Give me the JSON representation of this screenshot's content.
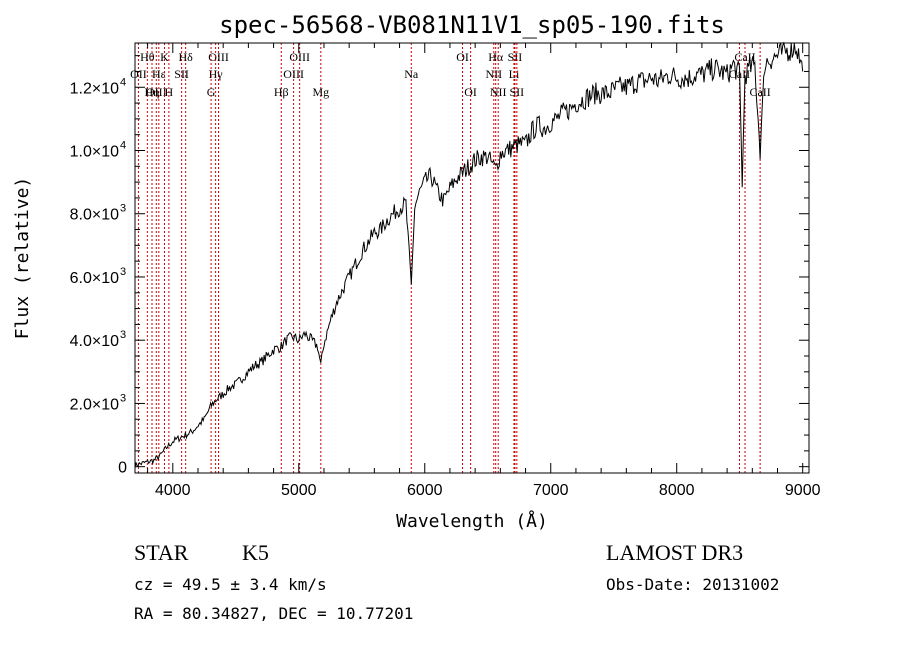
{
  "chart_data": {
    "type": "line",
    "title": "spec-56568-VB081N11V1_sp05-190.fits",
    "xlabel": "Wavelength (Å)",
    "ylabel": "Flux (relative)",
    "xlim": [
      3700,
      9050
    ],
    "ylim": [
      -200,
      13400
    ],
    "x_ticks": [
      4000,
      5000,
      6000,
      7000,
      8000,
      9000
    ],
    "y_ticks": [
      {
        "value": 0,
        "mantissa": "0",
        "exponent": ""
      },
      {
        "value": 2000,
        "mantissa": "2.0×10",
        "exponent": "3"
      },
      {
        "value": 4000,
        "mantissa": "4.0×10",
        "exponent": "3"
      },
      {
        "value": 6000,
        "mantissa": "6.0×10",
        "exponent": "3"
      },
      {
        "value": 8000,
        "mantissa": "8.0×10",
        "exponent": "3"
      },
      {
        "value": 10000,
        "mantissa": "1.0×10",
        "exponent": "4"
      },
      {
        "value": 12000,
        "mantissa": "1.2×10",
        "exponent": "4"
      }
    ],
    "spectrum": {
      "name": "flux",
      "x": [
        3700,
        3750,
        3800,
        3850,
        3900,
        3950,
        4000,
        4050,
        4100,
        4150,
        4200,
        4250,
        4300,
        4340,
        4400,
        4450,
        4500,
        4550,
        4600,
        4650,
        4700,
        4750,
        4800,
        4861,
        4900,
        4950,
        5000,
        5050,
        5100,
        5150,
        5175,
        5200,
        5250,
        5300,
        5350,
        5400,
        5450,
        5500,
        5550,
        5600,
        5650,
        5700,
        5750,
        5800,
        5850,
        5893,
        5920,
        5950,
        6000,
        6050,
        6100,
        6150,
        6200,
        6250,
        6300,
        6350,
        6400,
        6450,
        6500,
        6563,
        6600,
        6650,
        6700,
        6750,
        6800,
        6850,
        6900,
        6950,
        7000,
        7050,
        7100,
        7150,
        7200,
        7250,
        7300,
        7350,
        7400,
        7450,
        7500,
        7550,
        7600,
        7650,
        7700,
        7750,
        7800,
        7850,
        7900,
        7950,
        8000,
        8050,
        8100,
        8150,
        8200,
        8250,
        8300,
        8350,
        8400,
        8450,
        8498,
        8520,
        8542,
        8580,
        8620,
        8662,
        8700,
        8750,
        8800,
        8850,
        8900,
        8950,
        9000
      ],
      "flux": [
        50,
        100,
        150,
        200,
        350,
        600,
        800,
        900,
        1000,
        1100,
        1300,
        1500,
        1900,
        2100,
        2300,
        2500,
        2600,
        2800,
        3000,
        3200,
        3300,
        3500,
        3700,
        3800,
        4000,
        4100,
        4000,
        4200,
        4000,
        3800,
        3200,
        3900,
        4600,
        5200,
        5600,
        6000,
        6400,
        6800,
        7100,
        7400,
        7500,
        7800,
        8000,
        8200,
        8300,
        5700,
        8200,
        8600,
        9000,
        9200,
        8700,
        8400,
        8800,
        9100,
        9300,
        9500,
        9700,
        9800,
        9800,
        9400,
        9900,
        10000,
        10100,
        10200,
        10200,
        10600,
        10800,
        10700,
        10900,
        11000,
        11200,
        11300,
        11500,
        11600,
        11700,
        11800,
        11800,
        11800,
        11900,
        12000,
        12000,
        12100,
        12200,
        12200,
        12300,
        12200,
        12300,
        12400,
        12300,
        12300,
        12300,
        12400,
        12400,
        12500,
        12600,
        12500,
        12400,
        12700,
        12400,
        9000,
        12400,
        12600,
        12700,
        10000,
        12800,
        12900,
        13000,
        13100,
        13200,
        13300,
        12500
      ]
    },
    "lines": [
      {
        "label": "Hθ",
        "wave": 3798,
        "row": 0
      },
      {
        "label": "OII",
        "wave": 3727,
        "row": 1
      },
      {
        "label": "OIII",
        "wave": 3869,
        "row": 2
      },
      {
        "label": "Hε",
        "wave": 3889,
        "row": 1
      },
      {
        "label": "K",
        "wave": 3934,
        "row": 0
      },
      {
        "label": "Hη",
        "wave": 3835,
        "row": 2
      },
      {
        "label": "SII",
        "wave": 4070,
        "row": 1
      },
      {
        "label": "H",
        "wave": 3969,
        "row": 2
      },
      {
        "label": "Hδ",
        "wave": 4102,
        "row": 0
      },
      {
        "label": "OIII",
        "wave": 4363,
        "row": 0
      },
      {
        "label": "Hγ",
        "wave": 4340,
        "row": 1
      },
      {
        "label": "G",
        "wave": 4304,
        "row": 2
      },
      {
        "label": "Hβ",
        "wave": 4861,
        "row": 2
      },
      {
        "label": "OIII",
        "wave": 5007,
        "row": 0
      },
      {
        "label": "OIII",
        "wave": 4959,
        "row": 1
      },
      {
        "label": "Mg",
        "wave": 5175,
        "row": 2
      },
      {
        "label": "Na",
        "wave": 5893,
        "row": 1
      },
      {
        "label": "OI",
        "wave": 6300,
        "row": 0
      },
      {
        "label": "OI",
        "wave": 6364,
        "row": 2
      },
      {
        "label": "Hα",
        "wave": 6563,
        "row": 0
      },
      {
        "label": "NII",
        "wave": 6548,
        "row": 1
      },
      {
        "label": "NII",
        "wave": 6583,
        "row": 2
      },
      {
        "label": "SII",
        "wave": 6716,
        "row": 0
      },
      {
        "label": "Li",
        "wave": 6708,
        "row": 1
      },
      {
        "label": "SII",
        "wave": 6731,
        "row": 2
      },
      {
        "label": "CaII",
        "wave": 8542,
        "row": 0
      },
      {
        "label": "CaII",
        "wave": 8498,
        "row": 1
      },
      {
        "label": "CaII",
        "wave": 8662,
        "row": 2
      }
    ],
    "line_color": "#cc0000"
  },
  "info": {
    "object_type": "STAR",
    "subclass": "K5",
    "survey": "LAMOST DR3",
    "redshift": "cz = 49.5 ± 3.4 km/s",
    "obs_date": "Obs-Date: 20131002",
    "coords": "RA =  80.34827, DEC =  10.77201"
  }
}
